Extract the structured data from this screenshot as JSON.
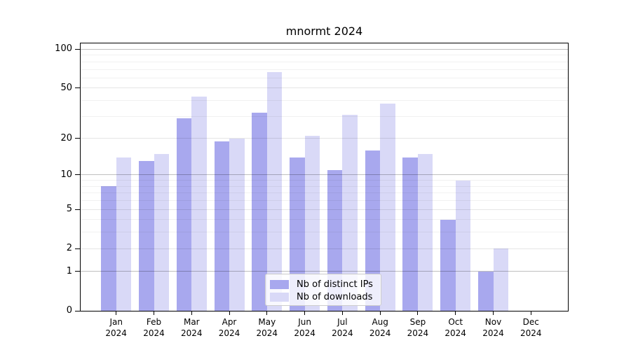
{
  "chart_data": {
    "type": "bar",
    "title": "mnormt 2024",
    "categories": [
      "Jan 2024",
      "Feb 2024",
      "Mar 2024",
      "Apr 2024",
      "May 2024",
      "Jun 2024",
      "Jul 2024",
      "Aug 2024",
      "Sep 2024",
      "Oct 2024",
      "Nov 2024",
      "Dec 2024"
    ],
    "series": [
      {
        "name": "Nb of distinct IPs",
        "color": "#a8a8ee",
        "values": [
          8,
          13,
          29,
          19,
          32,
          14,
          11,
          16,
          14,
          4,
          1,
          0
        ]
      },
      {
        "name": "Nb of downloads",
        "color": "#d9d9f7",
        "values": [
          14,
          15,
          43,
          20,
          67,
          21,
          31,
          38,
          15,
          9,
          2,
          0
        ]
      }
    ],
    "yscale": "log1p",
    "ylim": [
      0,
      111
    ],
    "grid": true,
    "legend_position": "bottom-center",
    "y_axis": {
      "tick_labels": [
        "0",
        "1",
        "2",
        "5",
        "10",
        "20",
        "50",
        "100"
      ],
      "tick_values": [
        0,
        1,
        2,
        5,
        10,
        20,
        50,
        100
      ],
      "decade_gridlines": [
        1,
        10,
        100
      ],
      "mid_gridlines": [
        2,
        5,
        20,
        50
      ],
      "minor_gridlines": [
        3,
        4,
        6,
        7,
        8,
        9,
        30,
        40,
        60,
        70,
        80,
        90
      ]
    }
  },
  "colors": {
    "bar_distinct_ips": "#a8a8ee",
    "bar_downloads": "#d9d9f7",
    "axis": "#000000",
    "background": "#ffffff"
  }
}
